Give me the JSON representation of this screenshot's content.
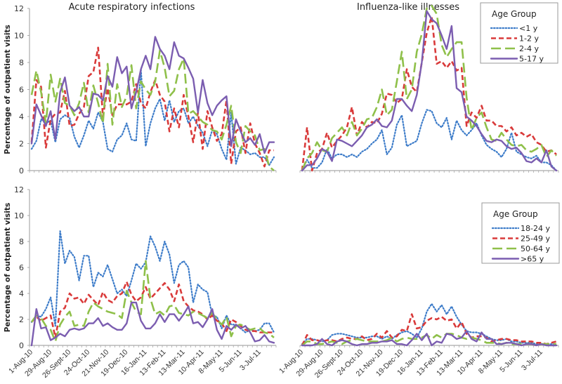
{
  "chart_data": [
    {
      "type": "line",
      "panel": "top-left",
      "title": "Acute respiratory infections",
      "ylabel": "Percentage of outpatient visits",
      "xlabel": "",
      "ylim": [
        0,
        12
      ],
      "yticks": [
        "0",
        "2",
        "4",
        "6",
        "8",
        "10",
        "12"
      ],
      "x_tick_labels": [],
      "grid": false,
      "series": [
        {
          "name": "<1 y",
          "color": "#3d7cc9",
          "style": "dotted",
          "values": [
            1.6,
            2.2,
            3.8,
            3.5,
            3.7,
            2.1,
            3.8,
            4.1,
            3.9,
            2.5,
            1.7,
            2.6,
            3.7,
            3.1,
            4.3,
            3.6,
            1.6,
            1.4,
            2.3,
            2.6,
            3.5,
            2.3,
            2.2,
            7.5,
            1.8,
            3.5,
            4.6,
            5.3,
            3.7,
            5.2,
            3.6,
            4.4,
            4.6,
            3.5,
            4.0,
            3.3,
            2.8,
            1.8,
            3.0,
            2.7,
            1.6,
            0.8,
            4.3,
            0.5,
            1.7,
            1.5,
            1.2,
            1.3,
            1.0,
            1.0,
            0.4,
            1.0
          ]
        },
        {
          "name": "1-2 y",
          "color": "#d93a3a",
          "style": "dashed",
          "values": [
            2.1,
            6.7,
            6.2,
            1.7,
            3.8,
            4.2,
            4.3,
            5.9,
            3.3,
            3.4,
            4.2,
            4.7,
            7.0,
            7.3,
            9.1,
            4.0,
            6.1,
            4.1,
            4.9,
            4.9,
            4.9,
            5.1,
            6.4,
            5.0,
            4.6,
            5.8,
            6.7,
            5.6,
            5.1,
            2.9,
            4.6,
            3.2,
            5.6,
            4.0,
            2.1,
            4.3,
            1.6,
            4.4,
            3.2,
            2.2,
            2.7,
            5.2,
            0.5,
            2.9,
            3.2,
            1.3,
            3.5,
            2.0,
            1.3,
            0.3,
            1.5,
            1.5
          ]
        },
        {
          "name": "2-4 y",
          "color": "#8fc04a",
          "style": "longdash",
          "values": [
            5.6,
            7.4,
            5.8,
            3.5,
            7.1,
            5.1,
            6.8,
            5.0,
            4.8,
            4.1,
            5.0,
            6.5,
            4.3,
            6.3,
            5.0,
            3.5,
            7.9,
            3.4,
            6.4,
            4.7,
            5.5,
            7.8,
            4.6,
            6.6,
            6.0,
            5.6,
            6.6,
            8.9,
            7.6,
            5.5,
            5.9,
            7.5,
            8.3,
            4.2,
            4.4,
            4.0,
            3.6,
            3.4,
            3.0,
            2.9,
            2.3,
            3.4,
            4.8,
            2.1,
            1.3,
            3.3,
            2.9,
            2.6,
            1.5,
            1.6,
            0.3,
            0.0
          ]
        },
        {
          "name": "5-17 y",
          "color": "#7b5db0",
          "style": "solid",
          "values": [
            2.0,
            4.9,
            4.1,
            3.3,
            4.4,
            2.3,
            5.8,
            6.9,
            4.8,
            4.4,
            4.7,
            4.0,
            4.0,
            5.7,
            5.6,
            5.2,
            7.0,
            6.2,
            8.4,
            7.2,
            7.7,
            4.6,
            5.8,
            7.5,
            8.5,
            7.5,
            9.9,
            9.0,
            8.5,
            7.5,
            9.5,
            8.5,
            8.3,
            7.6,
            6.8,
            4.3,
            6.7,
            5.0,
            4.1,
            4.8,
            5.2,
            5.5,
            1.8,
            3.8,
            2.9,
            2.1,
            2.4,
            1.9,
            2.7,
            1.3,
            2.1,
            2.1
          ]
        }
      ]
    },
    {
      "type": "line",
      "panel": "top-right",
      "title": "Influenza-like illnesses",
      "ylabel": "",
      "xlabel": "",
      "ylim": [
        0,
        12
      ],
      "x_tick_labels": [],
      "grid": false,
      "legend": {
        "title": "Age Group",
        "position": "top-right"
      },
      "series": [
        {
          "name": "<1 y",
          "color": "#3d7cc9",
          "style": "dotted",
          "values": [
            0.0,
            0.8,
            0.2,
            0.2,
            0.6,
            1.6,
            0.9,
            1.2,
            1.2,
            1.0,
            1.2,
            1.0,
            1.4,
            1.6,
            2.0,
            2.3,
            3.0,
            1.2,
            1.7,
            3.4,
            4.1,
            1.8,
            2.0,
            2.2,
            3.5,
            4.5,
            4.4,
            3.5,
            3.2,
            3.9,
            2.3,
            3.7,
            3.0,
            2.6,
            3.0,
            3.5,
            2.6,
            1.9,
            1.6,
            1.4,
            1.0,
            1.6,
            2.8,
            1.4,
            1.2,
            1.0,
            0.9,
            1.1,
            0.6,
            0.6,
            0.4,
            0.0
          ]
        },
        {
          "name": "1-2 y",
          "color": "#d93a3a",
          "style": "dashed",
          "values": [
            0.0,
            3.2,
            0.0,
            1.3,
            1.6,
            2.8,
            1.7,
            2.2,
            2.6,
            3.2,
            4.7,
            2.6,
            3.6,
            3.2,
            3.6,
            3.5,
            4.2,
            5.7,
            5.6,
            5.0,
            5.3,
            7.5,
            6.2,
            5.8,
            8.0,
            10.2,
            11.4,
            7.9,
            8.1,
            7.6,
            8.1,
            7.4,
            7.6,
            3.3,
            4.3,
            3.9,
            4.8,
            3.7,
            3.7,
            3.3,
            3.3,
            2.9,
            3.2,
            2.6,
            2.8,
            2.5,
            2.7,
            2.1,
            1.9,
            1.4,
            1.5,
            1.2
          ]
        },
        {
          "name": "2-4 y",
          "color": "#8fc04a",
          "style": "longdash",
          "values": [
            0.0,
            0.9,
            1.3,
            2.1,
            1.5,
            1.4,
            2.4,
            2.8,
            3.2,
            2.6,
            3.6,
            2.6,
            3.1,
            3.8,
            3.9,
            4.7,
            6.0,
            4.1,
            4.5,
            6.6,
            8.8,
            5.3,
            6.0,
            8.8,
            10.1,
            12.0,
            12.2,
            11.6,
            9.3,
            8.4,
            9.0,
            9.5,
            9.5,
            5.4,
            3.0,
            3.9,
            4.3,
            3.2,
            2.3,
            2.2,
            2.8,
            2.3,
            1.9,
            1.8,
            1.9,
            1.5,
            1.4,
            1.6,
            1.9,
            1.0,
            1.5,
            1.1
          ]
        },
        {
          "name": "5-17 y",
          "color": "#7b5db0",
          "style": "solid",
          "values": [
            0.0,
            0.4,
            0.4,
            0.9,
            1.6,
            1.4,
            0.7,
            2.3,
            2.2,
            2.0,
            1.8,
            2.2,
            2.6,
            3.2,
            3.4,
            3.8,
            3.3,
            3.2,
            3.7,
            5.3,
            5.3,
            4.8,
            4.4,
            5.6,
            8.0,
            11.8,
            11.2,
            10.9,
            10.0,
            9.0,
            10.7,
            6.1,
            5.8,
            4.0,
            3.7,
            3.3,
            2.7,
            2.2,
            2.1,
            2.3,
            2.2,
            1.8,
            1.6,
            1.7,
            1.3,
            0.7,
            0.6,
            0.9,
            0.6,
            1.5,
            0.3,
            0.0
          ]
        }
      ]
    },
    {
      "type": "line",
      "panel": "bottom-left",
      "title": "",
      "ylabel": "Percentage of outpatient visits",
      "xlabel": "",
      "ylim": [
        0,
        12
      ],
      "yticks": [
        "0",
        "2",
        "4",
        "6",
        "8",
        "10",
        "12"
      ],
      "x_tick_labels": [
        "1-Aug-10",
        "29-Aug-10",
        "26-Sept-10",
        "24-Oct-10",
        "21-Nov-10",
        "19-Dec-10",
        "16-Jan-11",
        "13-Feb-11",
        "13-Mar-11",
        "10-Apr-11",
        "8-May-11",
        "5-Jun-11",
        "3-Jul-11"
      ],
      "grid": false,
      "series": [
        {
          "name": "18-24 y",
          "color": "#3d7cc9",
          "style": "dotted",
          "values": [
            1.8,
            2.3,
            2.2,
            2.8,
            3.7,
            1.5,
            8.8,
            6.3,
            7.3,
            6.8,
            5.0,
            6.9,
            6.9,
            4.5,
            5.6,
            5.3,
            6.2,
            5.1,
            4.0,
            4.3,
            3.8,
            5.0,
            6.3,
            5.9,
            6.4,
            8.4,
            7.6,
            6.5,
            8.0,
            7.0,
            4.8,
            6.2,
            6.5,
            6.0,
            3.3,
            4.7,
            4.3,
            4.1,
            2.3,
            2.2,
            1.3,
            2.3,
            1.6,
            1.6,
            1.3,
            1.0,
            1.2,
            1.1,
            1.2,
            1.7,
            1.7,
            1.0
          ]
        },
        {
          "name": "25-49 y",
          "color": "#d93a3a",
          "style": "dashed",
          "values": [
            1.8,
            2.2,
            1.9,
            2.1,
            2.3,
            0.6,
            2.6,
            2.9,
            4.0,
            3.6,
            3.7,
            3.2,
            3.9,
            3.5,
            3.1,
            4.1,
            3.5,
            3.3,
            3.8,
            4.0,
            4.9,
            3.9,
            3.4,
            3.7,
            4.5,
            3.6,
            4.0,
            4.4,
            4.8,
            4.3,
            3.4,
            4.7,
            3.4,
            3.0,
            2.7,
            2.6,
            2.4,
            2.0,
            2.3,
            1.9,
            1.7,
            1.1,
            2.0,
            1.8,
            1.5,
            1.2,
            1.1,
            1.1,
            1.0,
            1.0,
            1.0,
            1.0
          ]
        },
        {
          "name": "50-64 y",
          "color": "#8fc04a",
          "style": "longdash",
          "values": [
            1.8,
            2.3,
            2.1,
            1.5,
            1.2,
            0.3,
            1.6,
            2.2,
            2.6,
            1.5,
            1.6,
            1.5,
            2.6,
            3.3,
            3.0,
            2.8,
            2.6,
            2.5,
            2.4,
            2.1,
            4.2,
            3.3,
            2.6,
            2.4,
            6.5,
            3.6,
            2.4,
            2.6,
            2.3,
            3.0,
            3.1,
            2.5,
            2.4,
            2.3,
            2.6,
            2.5,
            2.3,
            2.1,
            2.5,
            2.0,
            1.6,
            2.2,
            0.7,
            1.5,
            1.6,
            1.4,
            1.2,
            1.3,
            1.3,
            1.0,
            0.9,
            0.6
          ]
        },
        {
          "name": ">65 y",
          "color": "#7b5db0",
          "style": "solid",
          "values": [
            0.0,
            2.8,
            1.3,
            1.4,
            0.4,
            0.6,
            0.9,
            0.7,
            1.2,
            1.3,
            1.2,
            1.3,
            1.7,
            1.7,
            2.1,
            1.5,
            1.7,
            1.4,
            1.2,
            1.2,
            1.7,
            3.3,
            3.3,
            1.9,
            1.3,
            1.3,
            1.7,
            2.4,
            1.8,
            2.4,
            2.4,
            1.9,
            2.4,
            3.0,
            1.7,
            1.8,
            1.4,
            2.0,
            2.8,
            1.2,
            0.5,
            1.5,
            1.2,
            1.6,
            1.3,
            1.5,
            1.0,
            0.3,
            0.4,
            0.8,
            0.3,
            0.2
          ]
        }
      ]
    },
    {
      "type": "line",
      "panel": "bottom-right",
      "title": "",
      "ylabel": "",
      "xlabel": "",
      "ylim": [
        0,
        12
      ],
      "x_tick_labels": [
        "1-Aug-10",
        "29-Aug-10",
        "26-Sept-10",
        "24-Oct-10",
        "21-Nov-10",
        "19-Dec-10",
        "16-Jan-11",
        "13-Feb-11",
        "13-Mar-11",
        "10-Apr-11",
        "8-May-11",
        "5-Jun-11",
        "3-Jul-11"
      ],
      "grid": false,
      "legend": {
        "title": "Age Group",
        "position": "top-right"
      },
      "series": [
        {
          "name": "18-24 y",
          "color": "#3d7cc9",
          "style": "dotted",
          "values": [
            0.1,
            0.5,
            0.5,
            0.4,
            0.3,
            0.4,
            0.8,
            0.9,
            0.9,
            0.8,
            0.7,
            0.6,
            0.6,
            0.6,
            0.7,
            0.7,
            0.5,
            0.7,
            0.5,
            0.8,
            1.0,
            1.1,
            0.9,
            0.6,
            1.3,
            2.6,
            3.2,
            2.6,
            3.1,
            2.4,
            3.0,
            2.2,
            1.6,
            1.1,
            1.0,
            1.0,
            0.9,
            0.7,
            0.5,
            0.4,
            0.4,
            0.5,
            0.3,
            0.3,
            0.2,
            0.2,
            0.2,
            0.1,
            0.1,
            0.1,
            0.1,
            0.1
          ]
        },
        {
          "name": "25-49 y",
          "color": "#d93a3a",
          "style": "dashed",
          "values": [
            0.0,
            0.8,
            0.4,
            0.4,
            0.3,
            0.4,
            0.4,
            0.3,
            0.5,
            0.6,
            0.5,
            0.5,
            0.7,
            0.4,
            0.5,
            0.9,
            0.6,
            1.1,
            0.6,
            0.7,
            1.2,
            1.1,
            2.4,
            1.3,
            1.4,
            1.9,
            2.1,
            2.0,
            2.2,
            1.9,
            2.0,
            1.3,
            1.8,
            0.9,
            0.6,
            0.7,
            0.7,
            0.6,
            0.3,
            0.4,
            0.5,
            0.5,
            0.4,
            0.4,
            0.3,
            0.3,
            0.3,
            0.2,
            0.2,
            0.1,
            0.2,
            0.3
          ]
        },
        {
          "name": "50-64 y",
          "color": "#8fc04a",
          "style": "longdash",
          "values": [
            0.0,
            0.3,
            0.3,
            0.1,
            0.1,
            0.2,
            0.3,
            0.2,
            0.1,
            0.3,
            0.4,
            0.5,
            0.4,
            0.3,
            0.3,
            0.3,
            0.3,
            0.4,
            0.6,
            0.3,
            0.5,
            0.6,
            0.5,
            0.5,
            0.6,
            0.8,
            0.5,
            0.8,
            0.6,
            0.9,
            0.9,
            0.8,
            0.6,
            0.5,
            0.6,
            0.5,
            0.4,
            0.2,
            0.2,
            0.2,
            0.1,
            0.2,
            0.1,
            0.1,
            0.1,
            0.1,
            0.1,
            0.0,
            0.1,
            0.1,
            0.1,
            0.1
          ]
        },
        {
          "name": ">65 y",
          "color": "#7b5db0",
          "style": "solid",
          "values": [
            0.0,
            0.0,
            0.0,
            0.1,
            0.5,
            0.1,
            0.0,
            0.3,
            0.4,
            0.3,
            0.1,
            0.0,
            0.1,
            0.1,
            0.2,
            0.2,
            0.3,
            0.3,
            0.4,
            0.1,
            0.1,
            0.0,
            0.4,
            0.9,
            0.4,
            0.9,
            0.0,
            0.3,
            0.2,
            0.9,
            0.8,
            0.5,
            0.6,
            1.1,
            0.5,
            0.3,
            1.0,
            0.5,
            0.5,
            0.1,
            0.1,
            0.2,
            0.2,
            0.1,
            0.0,
            0.1,
            0.1,
            0.0,
            0.1,
            0.0,
            0.0,
            0.0
          ]
        }
      ]
    }
  ]
}
